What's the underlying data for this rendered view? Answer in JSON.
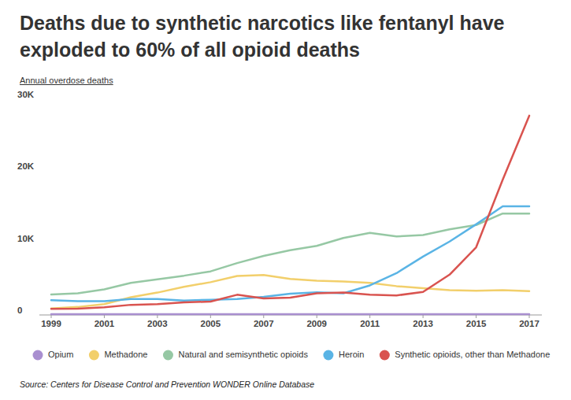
{
  "chart_data": {
    "type": "line",
    "title": "Deaths due to synthetic narcotics like fentanyl have exploded to 60% of all opioid deaths",
    "subtitle": "Annual overdose deaths",
    "source": "Source: Centers for Disease Control and Prevention WONDER Online Database",
    "x": [
      1999,
      2000,
      2001,
      2002,
      2003,
      2004,
      2005,
      2006,
      2007,
      2008,
      2009,
      2010,
      2011,
      2012,
      2013,
      2014,
      2015,
      2016,
      2017
    ],
    "xlim": [
      1999,
      2017
    ],
    "xticks": [
      1999,
      2001,
      2003,
      2005,
      2007,
      2009,
      2011,
      2013,
      2015,
      2017
    ],
    "ylim": [
      0,
      30000
    ],
    "yticks": [
      0,
      {
        "value": 10000,
        "label": "10K"
      },
      {
        "value": 20000,
        "label": "20K"
      },
      {
        "value": 30000,
        "label": "30K"
      }
    ],
    "grid": false,
    "legend": "bottom",
    "series": [
      {
        "name": "Opium",
        "color": "#a98fd0",
        "values": [
          0,
          0,
          0,
          0,
          0,
          0,
          0,
          0,
          0,
          0,
          0,
          0,
          0,
          0,
          0,
          0,
          0,
          0,
          0
        ]
      },
      {
        "name": "Methadone",
        "color": "#f2cf6b",
        "values": [
          800,
          1000,
          1400,
          2350,
          3000,
          3800,
          4450,
          5300,
          5450,
          4900,
          4650,
          4550,
          4350,
          3900,
          3600,
          3350,
          3250,
          3350,
          3200
        ]
      },
      {
        "name": "Natural and semisynthetic opioids",
        "color": "#96c8a4",
        "values": [
          2750,
          2900,
          3450,
          4350,
          4850,
          5350,
          5950,
          7100,
          8100,
          8900,
          9500,
          10600,
          11300,
          10800,
          11000,
          11800,
          12400,
          14000,
          14000
        ]
      },
      {
        "name": "Heroin",
        "color": "#5ab4e5",
        "values": [
          1950,
          1800,
          1800,
          2100,
          2100,
          1900,
          2000,
          2100,
          2400,
          2850,
          3050,
          2900,
          4000,
          5700,
          8000,
          10100,
          12500,
          15000,
          15000
        ]
      },
      {
        "name": "Synthetic opioids, other than Methadone",
        "color": "#d9534f",
        "values": [
          730,
          780,
          960,
          1300,
          1400,
          1650,
          1750,
          2700,
          2200,
          2300,
          2900,
          3000,
          2700,
          2600,
          3100,
          5500,
          9300,
          18700,
          27600
        ]
      }
    ]
  }
}
